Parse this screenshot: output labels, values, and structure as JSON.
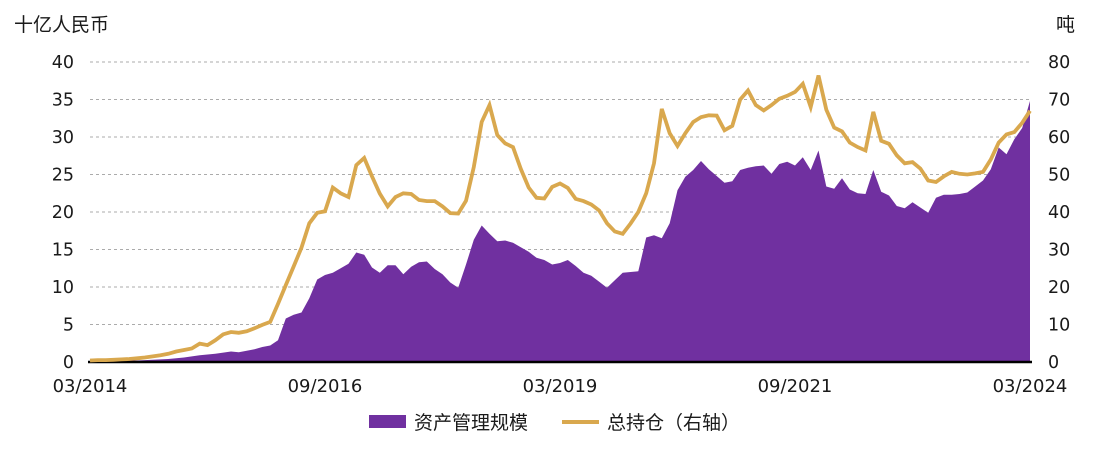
{
  "chart_data": {
    "type": "combo",
    "title": "",
    "left_axis": {
      "title": "十亿人民币",
      "range": [
        0,
        40
      ],
      "ticks": [
        40,
        35,
        30,
        25,
        20,
        15,
        10,
        5,
        0
      ]
    },
    "right_axis": {
      "title": "吨",
      "range": [
        0,
        80
      ],
      "ticks": [
        80,
        70,
        60,
        50,
        40,
        30,
        20,
        10,
        0
      ]
    },
    "x_axis": {
      "frequency": "monthly",
      "start": "03/2014",
      "end": "03/2024",
      "points_count": 121,
      "tick_labels": [
        "03/2014",
        "09/2016",
        "03/2019",
        "09/2021",
        "03/2024"
      ],
      "tick_indices": [
        0,
        30,
        60,
        90,
        120
      ]
    },
    "grid": {
      "show": true,
      "color": "#ABABAB",
      "style": "dashed"
    },
    "axis_line_color": "#000000",
    "text_color": "#1a1a1a",
    "legend": {
      "position": "bottom"
    },
    "series": [
      {
        "name": "资产管理规模",
        "type": "area",
        "axis": "left",
        "color": "#7030A0",
        "values": [
          0.1,
          0.1,
          0.1,
          0.15,
          0.15,
          0.2,
          0.2,
          0.25,
          0.3,
          0.35,
          0.4,
          0.5,
          0.6,
          0.75,
          0.9,
          1.0,
          1.1,
          1.25,
          1.4,
          1.3,
          1.5,
          1.7,
          2.0,
          2.2,
          2.9,
          5.8,
          6.3,
          6.6,
          8.5,
          11.0,
          11.6,
          11.9,
          12.5,
          13.1,
          14.6,
          14.3,
          12.6,
          11.9,
          12.9,
          12.9,
          11.7,
          12.7,
          13.3,
          13.4,
          12.4,
          11.7,
          10.6,
          9.9,
          13.0,
          16.3,
          18.2,
          17.1,
          16.1,
          16.2,
          15.9,
          15.3,
          14.7,
          13.9,
          13.6,
          13.0,
          13.2,
          13.6,
          12.8,
          11.9,
          11.5,
          10.7,
          9.9,
          10.9,
          11.9,
          12.0,
          12.1,
          16.6,
          16.9,
          16.5,
          18.5,
          22.9,
          24.7,
          25.6,
          26.8,
          25.7,
          24.8,
          23.9,
          24.1,
          25.6,
          25.9,
          26.1,
          26.2,
          25.1,
          26.4,
          26.7,
          26.2,
          27.3,
          25.6,
          28.2,
          23.4,
          23.1,
          24.5,
          23.0,
          22.5,
          22.4,
          25.6,
          22.7,
          22.2,
          20.8,
          20.5,
          21.3,
          20.6,
          19.9,
          21.9,
          22.3,
          22.3,
          22.4,
          22.6,
          23.4,
          24.2,
          25.7,
          28.6,
          27.7,
          29.7,
          31.2,
          34.8
        ]
      },
      {
        "name": "总持仓（右轴）",
        "type": "line",
        "axis": "right",
        "color": "#D9A84E",
        "values": [
          0.4,
          0.5,
          0.5,
          0.6,
          0.7,
          0.8,
          1.0,
          1.2,
          1.5,
          1.8,
          2.2,
          2.8,
          3.2,
          3.6,
          4.9,
          4.5,
          5.8,
          7.4,
          8.0,
          7.8,
          8.2,
          9.0,
          9.9,
          10.7,
          15.5,
          20.5,
          25.5,
          30.5,
          37.0,
          39.8,
          40.2,
          46.5,
          45.0,
          44.0,
          52.5,
          54.4,
          49.5,
          44.9,
          41.5,
          44.0,
          45.0,
          44.8,
          43.2,
          42.9,
          42.9,
          41.5,
          39.7,
          39.6,
          43.0,
          52.0,
          64.0,
          68.5,
          60.5,
          58.3,
          57.3,
          51.5,
          46.5,
          43.8,
          43.6,
          46.7,
          47.6,
          46.4,
          43.5,
          42.9,
          42.0,
          40.4,
          37.0,
          34.8,
          34.2,
          36.9,
          40.0,
          45.0,
          53.0,
          67.5,
          61.0,
          57.6,
          61.0,
          64.0,
          65.3,
          65.8,
          65.7,
          61.8,
          63.0,
          70.0,
          72.4,
          68.5,
          67.1,
          68.5,
          70.2,
          71.0,
          72.0,
          74.2,
          68.0,
          76.4,
          67.3,
          62.5,
          61.5,
          58.5,
          57.3,
          56.4,
          66.7,
          59.0,
          58.2,
          55.1,
          53.0,
          53.3,
          51.6,
          48.4,
          48.0,
          49.5,
          50.7,
          50.2,
          50.0,
          50.3,
          50.7,
          54.0,
          58.5,
          60.7,
          61.3,
          63.8,
          67.0
        ]
      }
    ]
  }
}
